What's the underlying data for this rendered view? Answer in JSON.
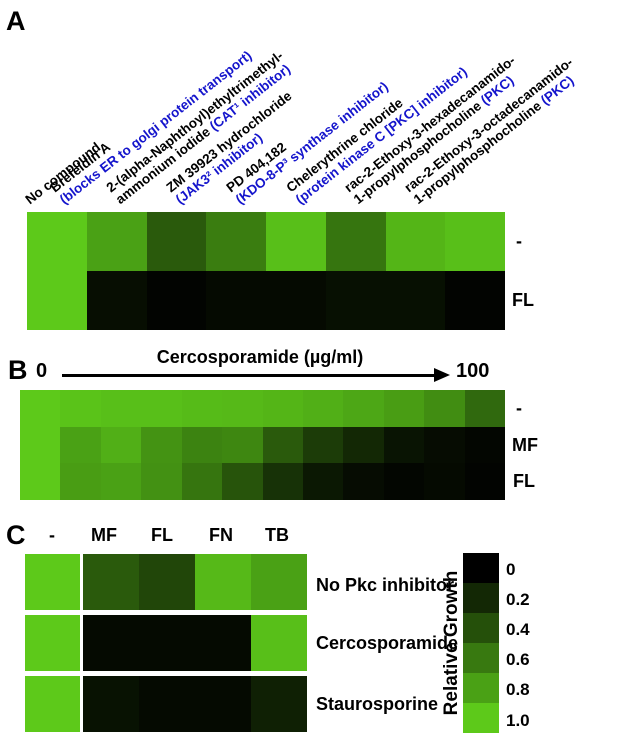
{
  "colors": {
    "label_blue": "#1414cc",
    "bright_green": "#5dc91a",
    "black": "#000000",
    "background": "#ffffff"
  },
  "panels": {
    "a": {
      "letter": "A",
      "row_labels": [
        "-",
        "FL"
      ],
      "column_labels": [
        [
          [
            {
              "t": "No compound",
              "c": "k"
            }
          ]
        ],
        [
          [
            {
              "t": "Brefeldin A",
              "c": "k"
            }
          ],
          [
            {
              "t": "(blocks ER to golgi protein transport)",
              "c": "b"
            }
          ]
        ],
        [
          [
            {
              "t": "2-(alpha-Naphthoyl)ethyltrimethyl-",
              "c": "k"
            }
          ],
          [
            {
              "t": "ammonium iodide ",
              "c": "k"
            },
            {
              "t": "(CAT¹ inhibitor)",
              "c": "b"
            }
          ]
        ],
        [
          [
            {
              "t": "ZM 39923 hydrochloride",
              "c": "k"
            }
          ],
          [
            {
              "t": "(JAK3² inhibitor)",
              "c": "b"
            }
          ]
        ],
        [
          [
            {
              "t": "PD 404,182",
              "c": "k"
            }
          ],
          [
            {
              "t": "(KDO-8-P³ synthase inhibitor)",
              "c": "b"
            }
          ]
        ],
        [
          [
            {
              "t": "Chelerythrine chloride",
              "c": "k"
            }
          ],
          [
            {
              "t": "(protein kinase C [PKC] inhibitor)",
              "c": "b"
            }
          ]
        ],
        [
          [
            {
              "t": "rac-2-Ethoxy-3-hexadecanamido-",
              "c": "k"
            }
          ],
          [
            {
              "t": "1-propylphosphocholine ",
              "c": "k"
            },
            {
              "t": "(PKC)",
              "c": "b"
            }
          ]
        ],
        [
          [
            {
              "t": "rac-2-Ethoxy-3-octadecanamido-",
              "c": "k"
            }
          ],
          [
            {
              "t": "1-propylphosphocholine ",
              "c": "k"
            },
            {
              "t": "(PKC)",
              "c": "b"
            }
          ]
        ]
      ]
    },
    "b": {
      "letter": "B",
      "axis_title": "Cercosporamide (µg/ml)",
      "axis_min_label": "0",
      "axis_max_label": "100",
      "row_labels": [
        "-",
        "MF",
        "FL"
      ]
    },
    "c": {
      "letter": "C",
      "column_headers": [
        "-",
        "MF",
        "FL",
        "FN",
        "TB"
      ],
      "row_labels": [
        "No Pkc inhibitor",
        "Cercosporamide",
        "Staurosporine"
      ],
      "colorbar": {
        "label": "Relative Growth",
        "ticks": [
          "0",
          "0.2",
          "0.4",
          "0.6",
          "0.8",
          "1.0"
        ]
      }
    }
  },
  "chart_data": [
    {
      "id": "A",
      "type": "heatmap",
      "description": "Relative growth with various compounds, two parasite forms",
      "columns": [
        "No compound",
        "Brefeldin A (blocks ER to golgi protein transport)",
        "2-(alpha-Naphthoyl)ethyltrimethyl-ammonium iodide (CAT¹ inhibitor)",
        "ZM 39923 hydrochloride (JAK3² inhibitor)",
        "PD 404,182 (KDO-8-P³ synthase inhibitor)",
        "Chelerythrine chloride (protein kinase C [PKC] inhibitor)",
        "rac-2-Ethoxy-3-hexadecanamido-1-propylphosphocholine (PKC)",
        "rac-2-Ethoxy-3-octadecanamido-1-propylphosphocholine (PKC)"
      ],
      "rows": [
        "-",
        "FL"
      ],
      "values": [
        [
          1.0,
          0.8,
          0.45,
          0.62,
          0.95,
          0.58,
          0.9,
          0.95
        ],
        [
          1.0,
          0.07,
          0.02,
          0.05,
          0.05,
          0.08,
          0.08,
          0.02
        ]
      ],
      "value_range": [
        0,
        1
      ],
      "colormap": "black(0) to bright green(1)"
    },
    {
      "id": "B",
      "type": "heatmap",
      "x_axis": {
        "title": "Cercosporamide (µg/ml)",
        "min_label": "0",
        "max_label": "100",
        "n_columns": 12,
        "visible_tick_labels": [
          "0",
          "100"
        ]
      },
      "rows": [
        "-",
        "MF",
        "FL"
      ],
      "values": [
        [
          1.0,
          0.97,
          0.95,
          0.95,
          0.93,
          0.92,
          0.9,
          0.87,
          0.83,
          0.78,
          0.7,
          0.52
        ],
        [
          1.0,
          0.8,
          0.87,
          0.73,
          0.65,
          0.67,
          0.45,
          0.3,
          0.2,
          0.1,
          0.06,
          0.03
        ],
        [
          1.0,
          0.78,
          0.8,
          0.72,
          0.58,
          0.42,
          0.25,
          0.12,
          0.06,
          0.03,
          0.05,
          0.02
        ]
      ],
      "value_range": [
        0,
        1
      ],
      "colormap": "black(0) to bright green(1)"
    },
    {
      "id": "C",
      "type": "heatmap",
      "columns": [
        "-",
        "MF",
        "FL",
        "FN",
        "TB"
      ],
      "rows": [
        "No Pkc inhibitor",
        "Cercosporamide",
        "Staurosporine"
      ],
      "values": [
        [
          1.0,
          0.45,
          0.35,
          0.92,
          0.8
        ],
        [
          1.0,
          0.05,
          0.05,
          0.05,
          0.95
        ],
        [
          1.0,
          0.09,
          0.05,
          0.05,
          0.16
        ]
      ],
      "value_range": [
        0,
        1
      ],
      "legend": {
        "title": "Relative Growth",
        "ticks": [
          0,
          0.2,
          0.4,
          0.6,
          0.8,
          1.0
        ],
        "orientation": "vertical",
        "top_value": 0,
        "bottom_value": 1.0
      },
      "colormap": "black(0) to bright green(1)"
    }
  ]
}
